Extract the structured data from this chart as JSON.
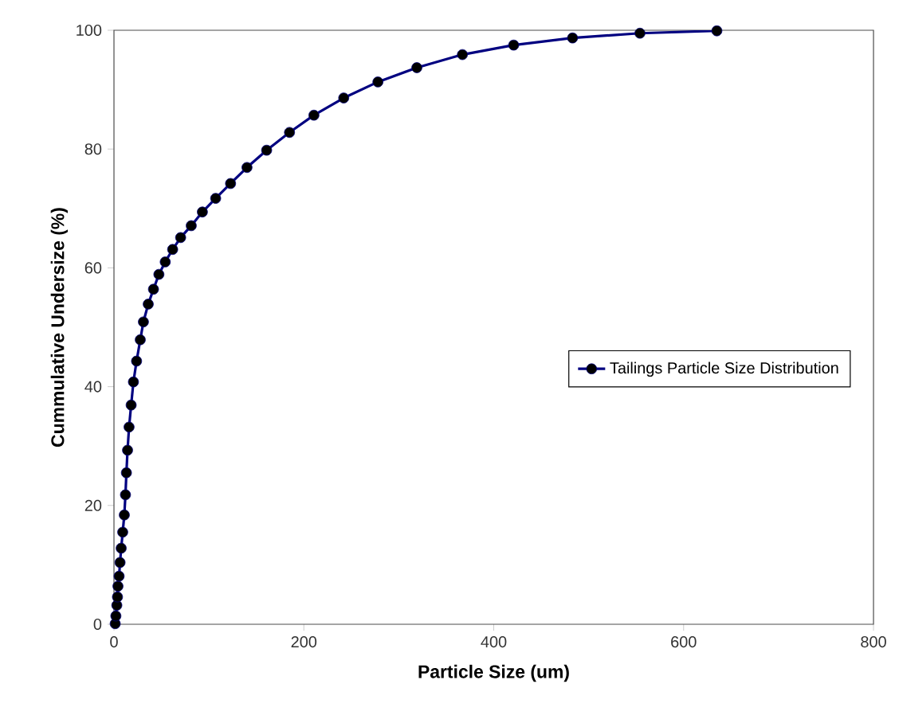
{
  "chart_data": {
    "type": "line",
    "xlabel": "Particle Size (um)",
    "ylabel": "Cummulative Undersize (%)",
    "xlim": [
      0,
      800
    ],
    "ylim": [
      0,
      100
    ],
    "xticks": [
      0,
      200,
      400,
      600,
      800
    ],
    "yticks": [
      0,
      20,
      40,
      60,
      80,
      100
    ],
    "grid": false,
    "legend": "right",
    "marker": "circle",
    "line_style": "solid",
    "series": [
      {
        "name": "Tailings Particle Size Distribution",
        "color": "#000080",
        "x": [
          1.3,
          2.0,
          3.0,
          3.7,
          4.2,
          5.4,
          6.4,
          7.6,
          9.2,
          10.9,
          12.1,
          13.1,
          14.3,
          15.9,
          18.1,
          20.5,
          23.8,
          27.7,
          31.0,
          36.1,
          41.6,
          47.3,
          54.0,
          61.8,
          70.2,
          81.4,
          93.1,
          107.1,
          122.8,
          140.1,
          160.8,
          184.9,
          210.6,
          242,
          278,
          319,
          367,
          421,
          483,
          554,
          635
        ],
        "values": [
          0.1,
          1.4,
          3.2,
          4.6,
          6.4,
          8.1,
          10.4,
          12.8,
          15.5,
          18.4,
          21.8,
          25.5,
          29.3,
          33.2,
          36.9,
          40.8,
          44.3,
          47.9,
          50.9,
          53.9,
          56.4,
          58.9,
          61.0,
          63.1,
          65.1,
          67.1,
          69.4,
          71.7,
          74.2,
          76.9,
          79.8,
          82.8,
          85.7,
          88.6,
          91.3,
          93.7,
          95.9,
          97.5,
          98.7,
          99.5,
          99.9
        ]
      }
    ]
  }
}
